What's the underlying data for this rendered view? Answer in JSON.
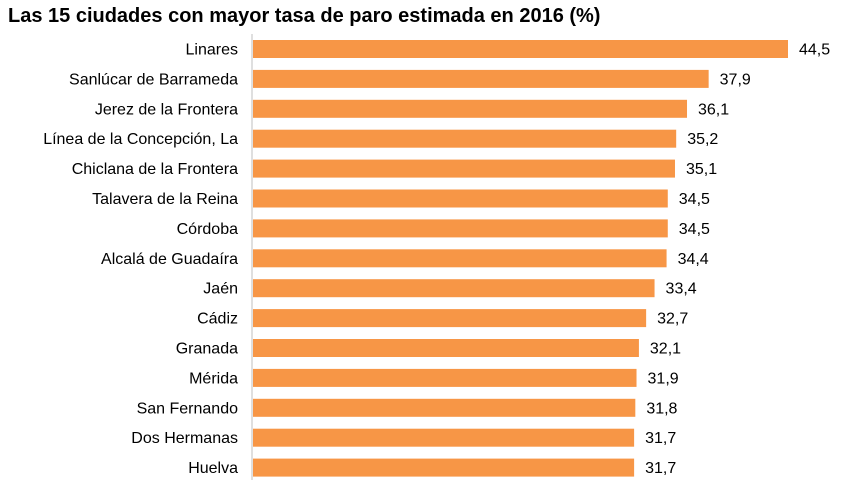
{
  "chart_data": {
    "type": "bar",
    "orientation": "horizontal",
    "title": "Las 15 ciudades con mayor tasa de paro estimada en 2016 (%)",
    "categories": [
      "Linares",
      "Sanlúcar de Barrameda",
      "Jerez de la Frontera",
      "Línea de la Concepción, La",
      "Chiclana de la Frontera",
      "Talavera de la Reina",
      "Córdoba",
      "Alcalá de Guadaíra",
      "Jaén",
      "Cádiz",
      "Granada",
      "Mérida",
      "San Fernando",
      "Dos Hermanas",
      "Huelva"
    ],
    "values": [
      44.5,
      37.9,
      36.1,
      35.2,
      35.1,
      34.5,
      34.5,
      34.4,
      33.4,
      32.7,
      32.1,
      31.9,
      31.8,
      31.7,
      31.7
    ],
    "value_labels": [
      "44,5",
      "37,9",
      "36,1",
      "35,2",
      "35,1",
      "34,5",
      "34,5",
      "34,4",
      "33,4",
      "32,7",
      "32,1",
      "31,9",
      "31,8",
      "31,7",
      "31,7"
    ],
    "xlim": [
      0,
      44.5
    ],
    "bar_color": "#F79646",
    "grid": false,
    "legend": "none"
  }
}
